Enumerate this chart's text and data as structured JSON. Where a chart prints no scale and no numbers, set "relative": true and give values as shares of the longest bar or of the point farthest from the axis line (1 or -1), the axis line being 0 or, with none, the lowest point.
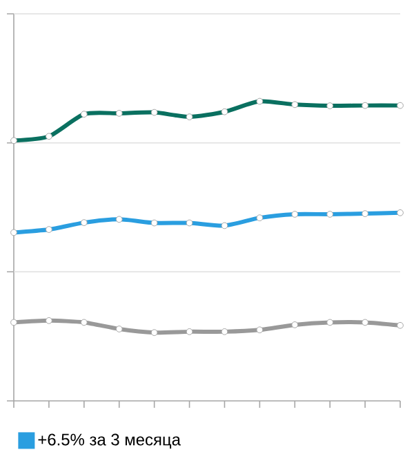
{
  "chart_data": {
    "type": "line",
    "relative": true,
    "categories": [
      null,
      null,
      null,
      null,
      null,
      null,
      null,
      null,
      null,
      null,
      null,
      null
    ],
    "series": [
      {
        "color": "#0a7060",
        "values": [
          0.869,
          0.883,
          0.957,
          0.96,
          0.963,
          0.948,
          0.965,
          1,
          0.989,
          0.985,
          0.986,
          0.986
        ]
      },
      {
        "name": "+6.5% за 3 месяца",
        "color": "#2a9ee0",
        "values": [
          0.562,
          0.572,
          0.595,
          0.606,
          0.594,
          0.594,
          0.585,
          0.611,
          0.623,
          0.623,
          0.625,
          0.628
        ]
      },
      {
        "color": "#999999",
        "values": [
          0.262,
          0.268,
          0.262,
          0.24,
          0.228,
          0.231,
          0.231,
          0.237,
          0.254,
          0.262,
          0.262,
          0.252
        ]
      }
    ],
    "ref_lines": [
      {
        "axis": "y",
        "value": 0.431,
        "color": "#dfdfdf"
      },
      {
        "axis": "y",
        "value": 0.861,
        "color": "#dfdfdf"
      }
    ],
    "legend": "bottom",
    "marker": "circle",
    "line_style": "solid"
  }
}
